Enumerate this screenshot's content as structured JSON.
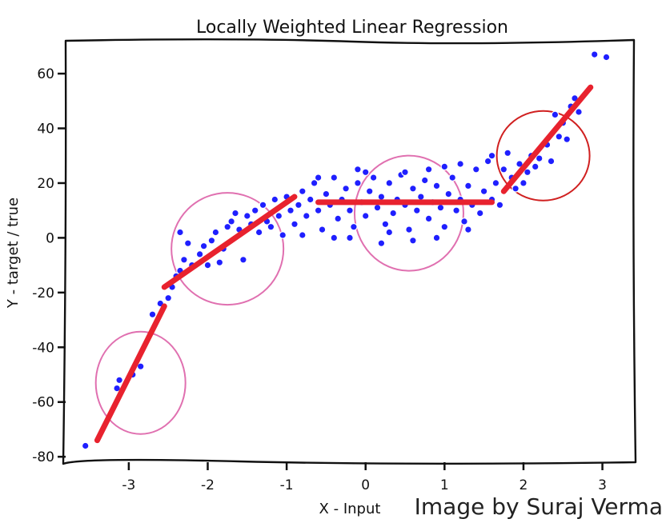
{
  "credit": "Image by Suraj Verma",
  "colors": {
    "points": "#1f1fff",
    "fit": "#e8222e",
    "circle_pink": "#e070b0",
    "circle_red": "#d02020"
  },
  "chart_data": {
    "type": "scatter",
    "title": "Locally Weighted Linear Regression",
    "xlabel": "X - Input",
    "ylabel": "Y - target / true",
    "xlim": [
      -3.8,
      3.4
    ],
    "ylim": [
      -82,
      72
    ],
    "xticks": [
      -3,
      -2,
      -1,
      0,
      1,
      2,
      3
    ],
    "yticks": [
      -80,
      -60,
      -40,
      -20,
      0,
      20,
      40,
      60
    ],
    "grid": false,
    "series": [
      {
        "kind": "points",
        "description": "approximate sample of the scattered observations",
        "points": [
          [
            -3.55,
            -76
          ],
          [
            -3.15,
            -55
          ],
          [
            -3.12,
            -52
          ],
          [
            -2.95,
            -50
          ],
          [
            -2.85,
            -47
          ],
          [
            -2.7,
            -28
          ],
          [
            -2.6,
            -24
          ],
          [
            -2.5,
            -22
          ],
          [
            -2.45,
            -18
          ],
          [
            -2.4,
            -14
          ],
          [
            -2.35,
            -12
          ],
          [
            -2.3,
            -8
          ],
          [
            -2.2,
            -10
          ],
          [
            -2.1,
            -6
          ],
          [
            -2.05,
            -3
          ],
          [
            -2.0,
            -10
          ],
          [
            -1.95,
            -1
          ],
          [
            -1.9,
            2
          ],
          [
            -1.8,
            -4
          ],
          [
            -1.75,
            4
          ],
          [
            -1.7,
            6
          ],
          [
            -1.6,
            3
          ],
          [
            -1.55,
            -8
          ],
          [
            -1.5,
            8
          ],
          [
            -1.45,
            5
          ],
          [
            -1.4,
            10
          ],
          [
            -1.35,
            2
          ],
          [
            -1.3,
            12
          ],
          [
            -1.25,
            6
          ],
          [
            -1.2,
            4
          ],
          [
            -1.15,
            14
          ],
          [
            -1.1,
            8
          ],
          [
            -1.05,
            1
          ],
          [
            -1.0,
            15
          ],
          [
            -0.95,
            10
          ],
          [
            -0.9,
            5
          ],
          [
            -2.35,
            2
          ],
          [
            -2.25,
            -2
          ],
          [
            -1.85,
            -9
          ],
          [
            -1.65,
            9
          ],
          [
            -0.85,
            12
          ],
          [
            -0.8,
            17
          ],
          [
            -0.75,
            8
          ],
          [
            -0.7,
            14
          ],
          [
            -0.65,
            20
          ],
          [
            -0.6,
            10
          ],
          [
            -0.55,
            3
          ],
          [
            -0.5,
            16
          ],
          [
            -0.45,
            12
          ],
          [
            -0.4,
            22
          ],
          [
            -0.35,
            7
          ],
          [
            -0.3,
            14
          ],
          [
            -0.25,
            18
          ],
          [
            -0.2,
            10
          ],
          [
            -0.15,
            4
          ],
          [
            -0.1,
            20
          ],
          [
            -0.05,
            13
          ],
          [
            0.0,
            8
          ],
          [
            0.05,
            17
          ],
          [
            0.1,
            22
          ],
          [
            0.15,
            11
          ],
          [
            0.2,
            15
          ],
          [
            0.25,
            5
          ],
          [
            0.3,
            20
          ],
          [
            0.35,
            9
          ],
          [
            0.4,
            14
          ],
          [
            0.45,
            23
          ],
          [
            0.5,
            12
          ],
          [
            0.55,
            3
          ],
          [
            0.6,
            18
          ],
          [
            0.65,
            10
          ],
          [
            0.7,
            15
          ],
          [
            0.75,
            21
          ],
          [
            0.8,
            7
          ],
          [
            0.85,
            13
          ],
          [
            0.9,
            19
          ],
          [
            0.95,
            11
          ],
          [
            1.0,
            4
          ],
          [
            1.05,
            16
          ],
          [
            1.1,
            22
          ],
          [
            1.15,
            10
          ],
          [
            1.2,
            14
          ],
          [
            1.25,
            6
          ],
          [
            1.3,
            19
          ],
          [
            1.35,
            12
          ],
          [
            1.4,
            25
          ],
          [
            1.45,
            9
          ],
          [
            1.5,
            17
          ],
          [
            1.55,
            28
          ],
          [
            1.6,
            14
          ],
          [
            1.65,
            20
          ],
          [
            1.7,
            12
          ],
          [
            1.75,
            25
          ],
          [
            1.8,
            31
          ],
          [
            1.85,
            22
          ],
          [
            1.9,
            18
          ],
          [
            1.95,
            27
          ],
          [
            2.0,
            20
          ],
          [
            2.05,
            24
          ],
          [
            2.1,
            30
          ],
          [
            2.15,
            26
          ],
          [
            2.2,
            29
          ],
          [
            2.3,
            34
          ],
          [
            2.35,
            28
          ],
          [
            2.4,
            45
          ],
          [
            2.45,
            37
          ],
          [
            2.5,
            42
          ],
          [
            2.55,
            36
          ],
          [
            2.6,
            48
          ],
          [
            2.65,
            51
          ],
          [
            2.7,
            46
          ],
          [
            2.9,
            67
          ],
          [
            3.05,
            66
          ],
          [
            -0.6,
            22
          ],
          [
            -0.2,
            0
          ],
          [
            0.3,
            2
          ],
          [
            0.8,
            25
          ],
          [
            1.2,
            27
          ],
          [
            0.0,
            24
          ],
          [
            -0.8,
            1
          ],
          [
            0.6,
            -1
          ],
          [
            1.0,
            26
          ],
          [
            0.2,
            -2
          ],
          [
            -0.4,
            0
          ],
          [
            1.3,
            3
          ],
          [
            0.5,
            24
          ],
          [
            -0.1,
            25
          ],
          [
            0.9,
            0
          ],
          [
            1.6,
            30
          ]
        ]
      },
      {
        "kind": "local-fits",
        "description": "red locally weighted linear fit segments",
        "segments": [
          [
            [
              -3.4,
              -74
            ],
            [
              -2.55,
              -25
            ]
          ],
          [
            [
              -2.55,
              -18
            ],
            [
              -0.9,
              15
            ]
          ],
          [
            [
              -0.6,
              13
            ],
            [
              1.6,
              13
            ]
          ],
          [
            [
              1.75,
              17
            ],
            [
              2.85,
              55
            ]
          ]
        ]
      },
      {
        "kind": "neighborhood-circles",
        "description": "circles marking local weighting windows",
        "circles": [
          {
            "cx": -2.85,
            "cy": -53,
            "color": "pink"
          },
          {
            "cx": -1.75,
            "cy": -4,
            "color": "pink"
          },
          {
            "cx": 0.55,
            "cy": 9,
            "color": "pink"
          },
          {
            "cx": 2.25,
            "cy": 30,
            "color": "red"
          }
        ]
      }
    ]
  }
}
